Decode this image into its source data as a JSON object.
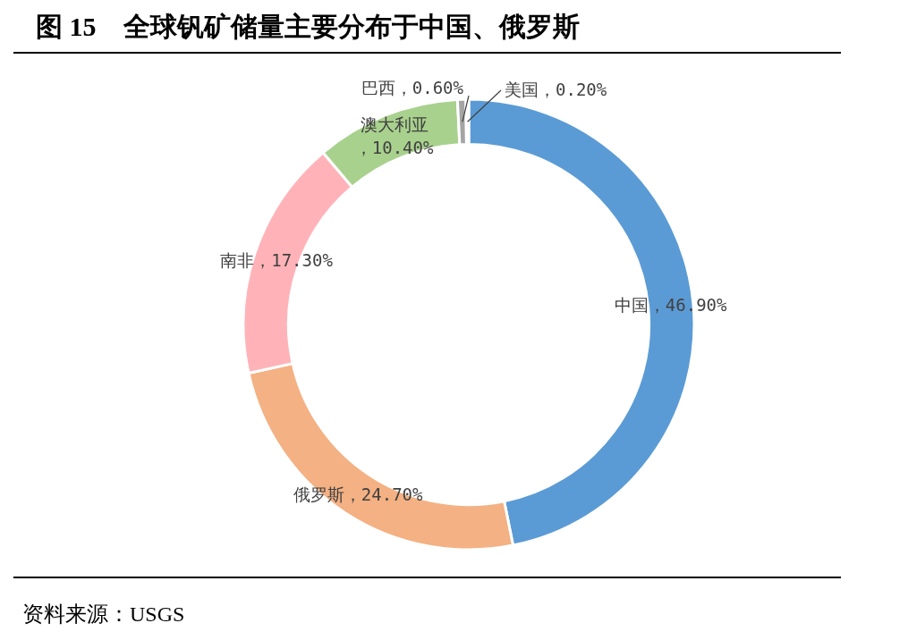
{
  "chart_data": {
    "type": "donut",
    "title": "图 15　全球钒矿储量主要分布于中国、俄罗斯",
    "categories": [
      "中国",
      "俄罗斯",
      "南非",
      "澳大利亚",
      "巴西",
      "美国"
    ],
    "values": [
      46.9,
      24.7,
      17.3,
      10.4,
      0.6,
      0.2
    ],
    "value_labels": [
      "，46.90%",
      "，24.70%",
      "，17.30%",
      "，10.40%",
      "，0.60%",
      "，0.20%"
    ],
    "colors": [
      "#5b9bd5",
      "#f4b183",
      "#ffb3b8",
      "#a9d18e",
      "#a5a5a5",
      "#ffe699"
    ],
    "annotations": [
      "资料来源：USGS"
    ]
  }
}
